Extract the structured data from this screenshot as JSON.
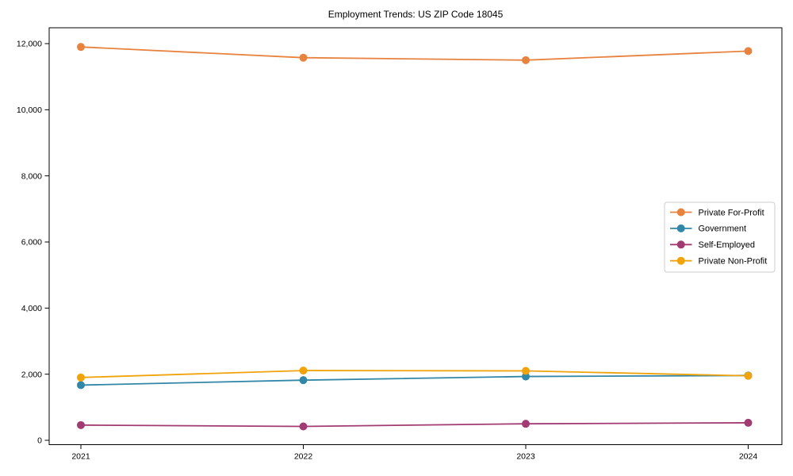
{
  "chart_data": {
    "type": "line",
    "title": "Employment Trends: US ZIP Code 18045",
    "xlabel": "",
    "ylabel": "",
    "x": [
      2021,
      2022,
      2023,
      2024
    ],
    "xtick_labels": [
      "2021",
      "2022",
      "2023",
      "2024"
    ],
    "ylim": [
      0,
      12000
    ],
    "yticks": [
      0,
      2000,
      4000,
      6000,
      8000,
      10000,
      12000
    ],
    "ytick_labels": [
      "0",
      "2,000",
      "4,000",
      "6,000",
      "8,000",
      "10,000",
      "12,000"
    ],
    "grid": false,
    "legend_position": "center-right",
    "frame": "full-box",
    "background_color": "#ffffff",
    "axis_color": "#000000",
    "legend_border_color": "#cccccc",
    "series": [
      {
        "name": "Private For-Profit",
        "color": "#E8833F",
        "values": [
          11900,
          11575,
          11500,
          11775
        ]
      },
      {
        "name": "Government",
        "color": "#3287A8",
        "values": [
          1670,
          1820,
          1930,
          1960
        ]
      },
      {
        "name": "Self-Employed",
        "color": "#A23B72",
        "values": [
          460,
          420,
          500,
          530
        ]
      },
      {
        "name": "Private Non-Profit",
        "color": "#F0A30A",
        "values": [
          1900,
          2110,
          2100,
          1950
        ]
      }
    ]
  }
}
